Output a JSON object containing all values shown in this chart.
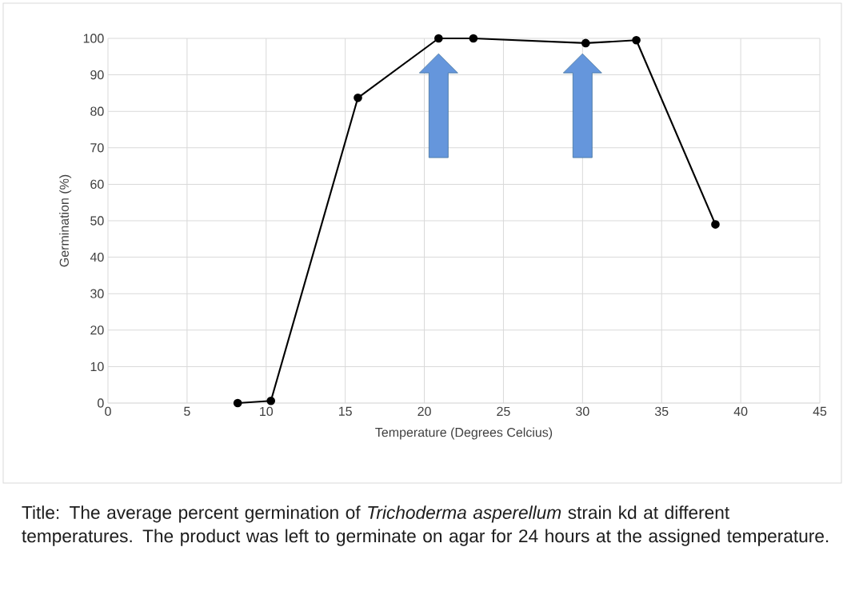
{
  "chart_data": {
    "type": "line",
    "xlabel": "Temperature (Degrees Celcius)",
    "ylabel": "Germination (%)",
    "x": [
      8.2,
      10.3,
      15.8,
      20.9,
      23.1,
      30.2,
      33.4,
      38.4
    ],
    "series": [
      {
        "color": "#000000",
        "values": [
          0,
          0.6,
          83.7,
          100,
          100,
          98.7,
          99.5,
          49
        ]
      }
    ],
    "xlim": [
      0,
      45
    ],
    "xticks": [
      0,
      5,
      10,
      15,
      20,
      25,
      30,
      35,
      40,
      45
    ],
    "ylim": [
      0,
      100
    ],
    "yticks": [
      0,
      10,
      20,
      30,
      40,
      50,
      60,
      70,
      80,
      90,
      100
    ],
    "grid": true,
    "marker": "circle",
    "line_style": "solid",
    "annotations": [
      "Title: The average percent germination of *Trichoderma asperellum* strain kd at different temperatures. The product was left to germinate on agar for 24 hours at the assigned temperature."
    ]
  }
}
